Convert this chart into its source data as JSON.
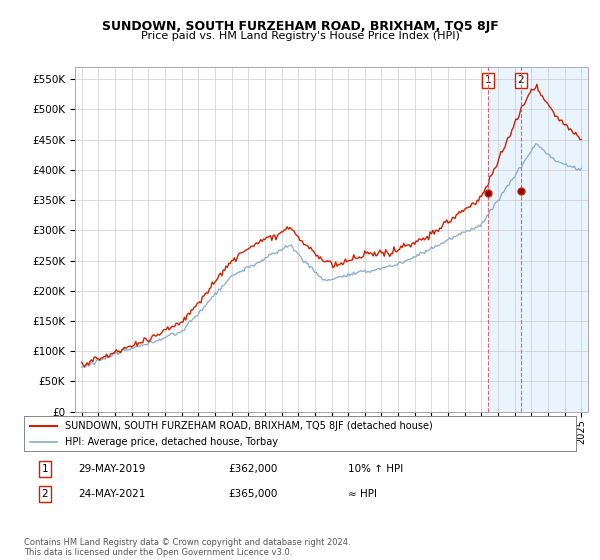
{
  "title": "SUNDOWN, SOUTH FURZEHAM ROAD, BRIXHAM, TQ5 8JF",
  "subtitle": "Price paid vs. HM Land Registry's House Price Index (HPI)",
  "legend_label_red": "SUNDOWN, SOUTH FURZEHAM ROAD, BRIXHAM, TQ5 8JF (detached house)",
  "legend_label_blue": "HPI: Average price, detached house, Torbay",
  "footnote": "Contains HM Land Registry data © Crown copyright and database right 2024.\nThis data is licensed under the Open Government Licence v3.0.",
  "table_rows": [
    {
      "num": "1",
      "date": "29-MAY-2019",
      "price": "£362,000",
      "hpi": "10% ↑ HPI"
    },
    {
      "num": "2",
      "date": "24-MAY-2021",
      "price": "£365,000",
      "hpi": "≈ HPI"
    }
  ],
  "marker1_x": 2019.42,
  "marker2_x": 2021.38,
  "marker1_y": 362000,
  "marker2_y": 365000,
  "vline1_x": 2019.42,
  "vline2_x": 2021.38,
  "ylim": [
    0,
    570000
  ],
  "yticks": [
    0,
    50000,
    100000,
    150000,
    200000,
    250000,
    300000,
    350000,
    400000,
    450000,
    500000,
    550000
  ],
  "ytick_labels": [
    "£0",
    "£50K",
    "£100K",
    "£150K",
    "£200K",
    "£250K",
    "£300K",
    "£350K",
    "£400K",
    "£450K",
    "£500K",
    "£550K"
  ],
  "red_color": "#cc2200",
  "blue_color": "#88aacc",
  "vline_color": "#dd6666",
  "shade_color": "#ddeeff",
  "background_color": "#ffffff",
  "grid_color": "#cccccc",
  "xlim_left": 1994.6,
  "xlim_right": 2025.4
}
